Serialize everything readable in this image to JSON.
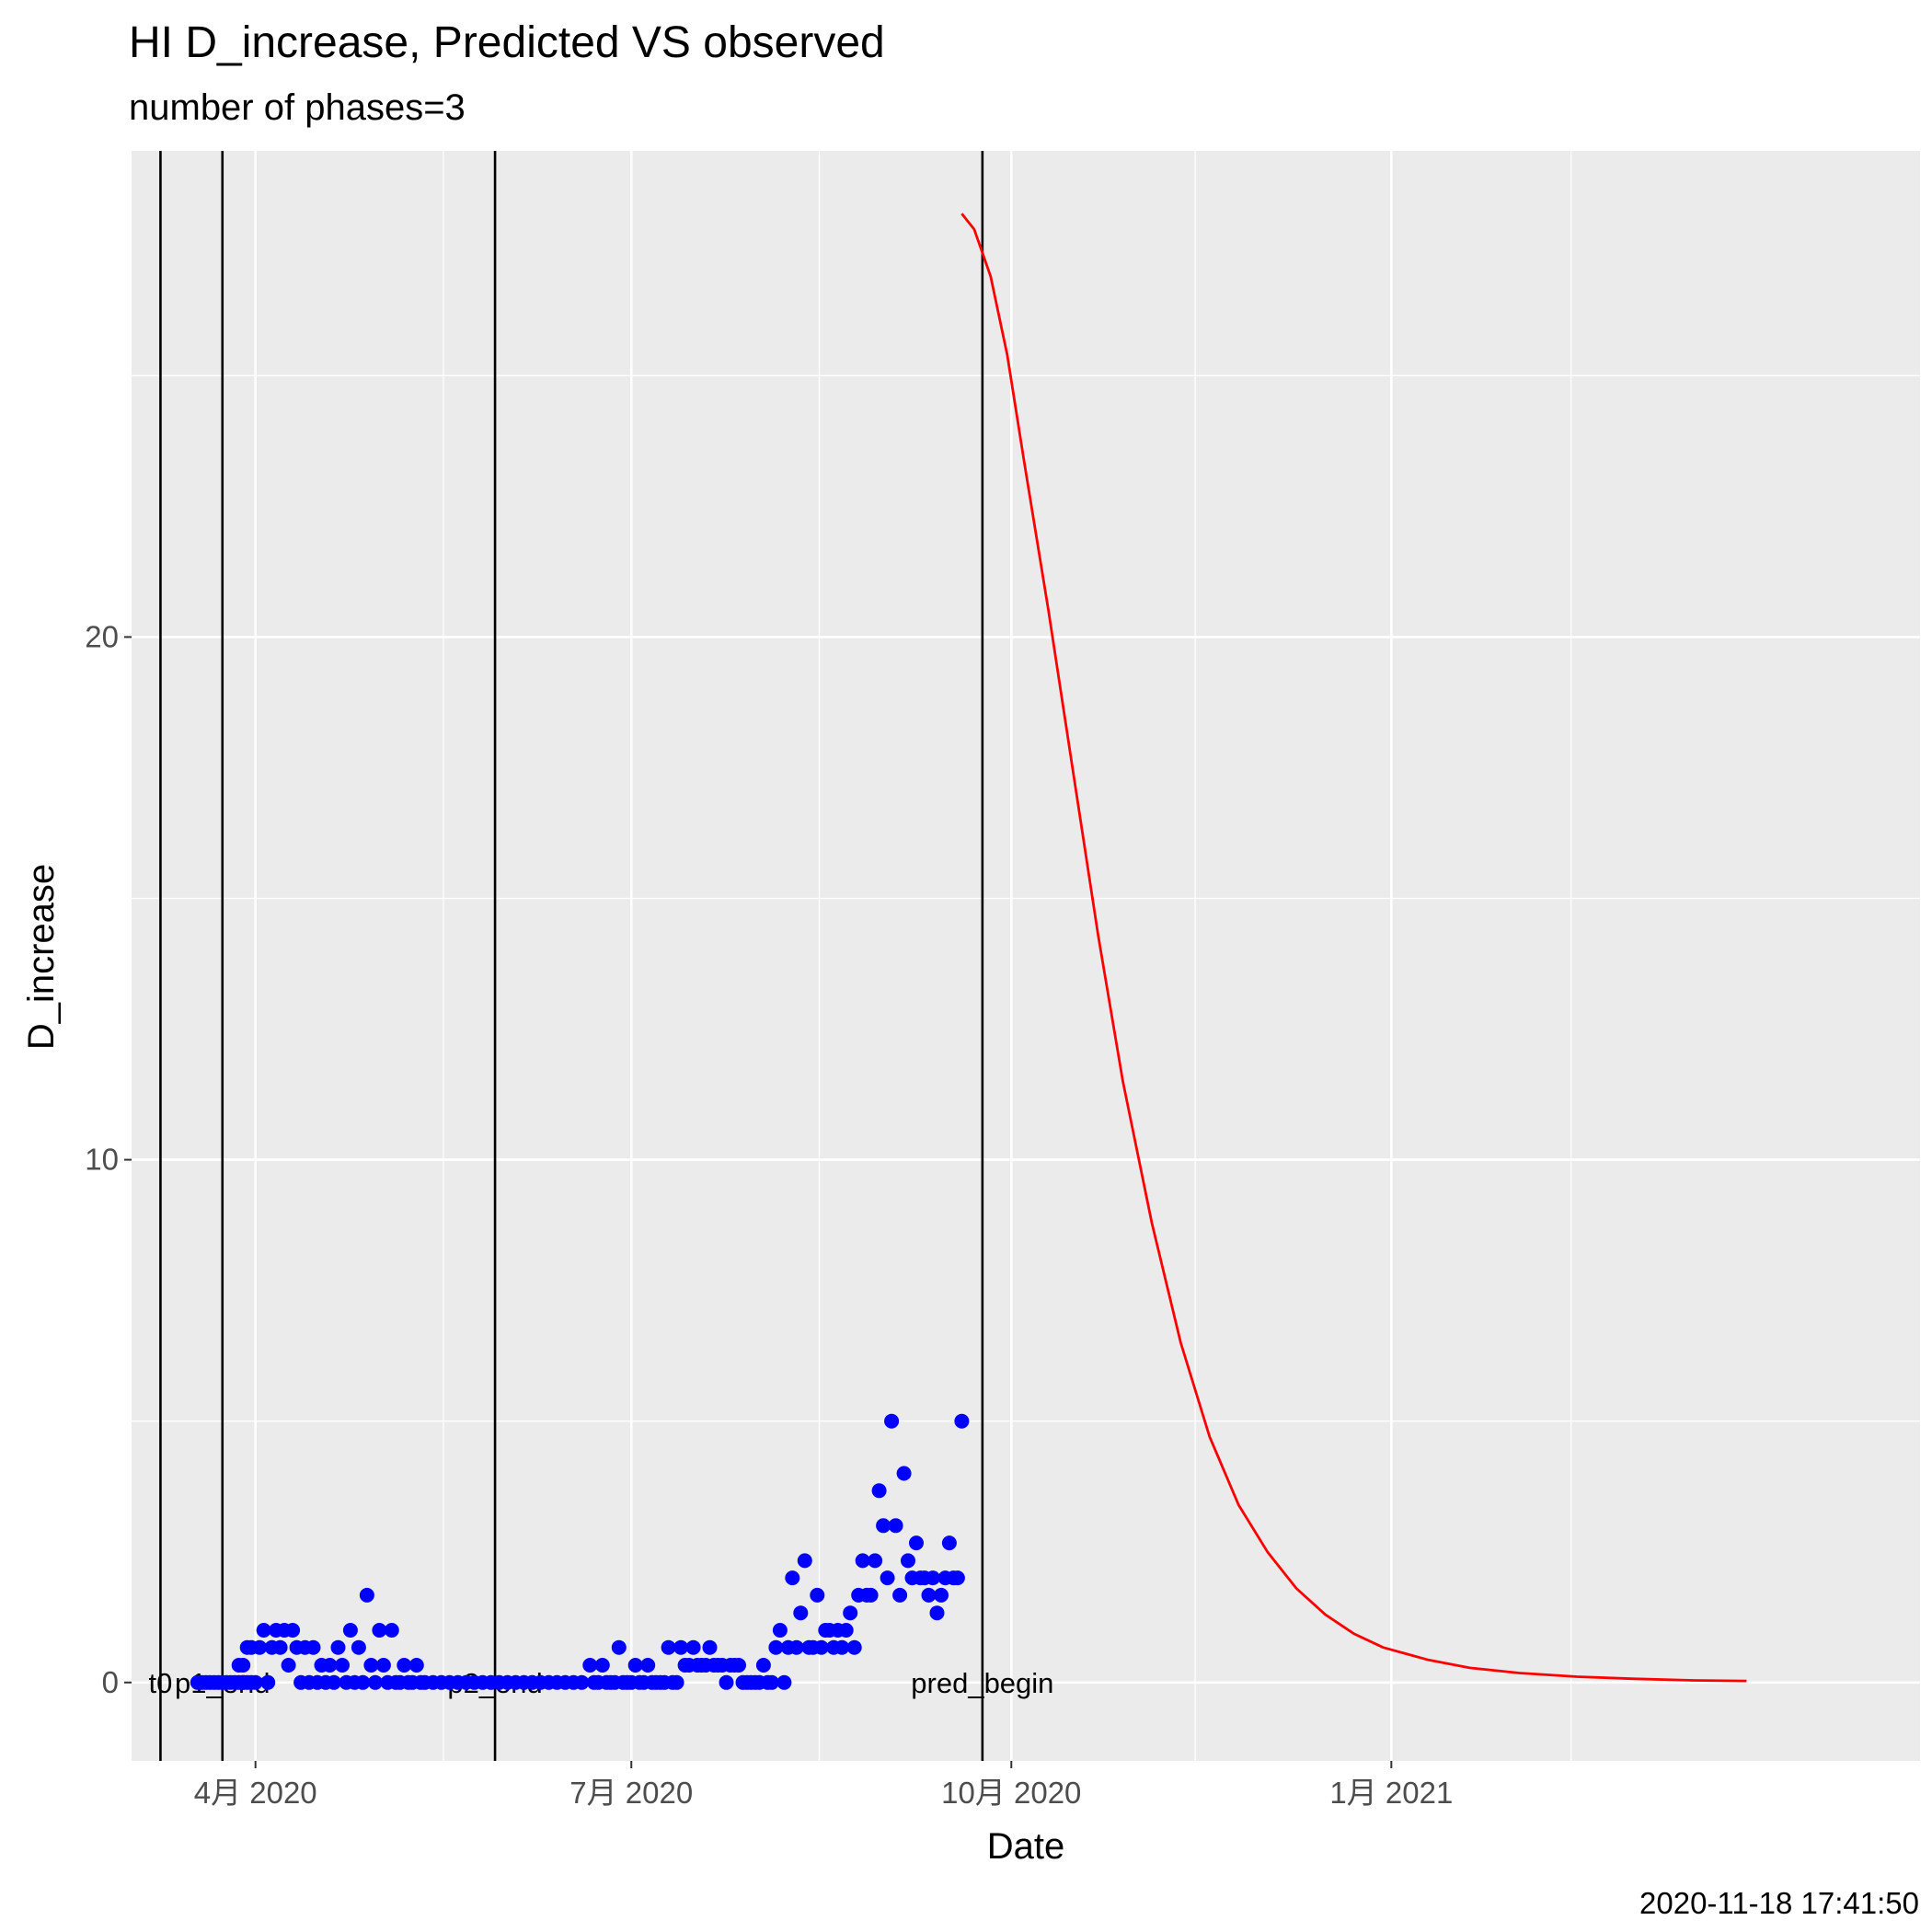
{
  "chart_data": {
    "type": "line",
    "title": "HI D_increase, Predicted VS observed",
    "subtitle": "number of phases=3",
    "xlabel": "Date",
    "ylabel": "D_increase",
    "caption": "2020-11-18 17:41:50",
    "xlim": [
      "2020-03-02",
      "2021-05-09"
    ],
    "ylim": [
      -1.5,
      29.3
    ],
    "x_ticks": [
      {
        "date": "2020-04-01",
        "label": "4月 2020"
      },
      {
        "date": "2020-07-01",
        "label": "7月 2020"
      },
      {
        "date": "2020-10-01",
        "label": "10月 2020"
      },
      {
        "date": "2021-01-01",
        "label": "1月 2021"
      }
    ],
    "y_ticks": [
      0,
      10,
      20
    ],
    "grid": true,
    "vertical_lines": [
      {
        "date": "2020-03-09",
        "label": "t0"
      },
      {
        "date": "2020-03-24",
        "label": "p1_end"
      },
      {
        "date": "2020-05-29",
        "label": "p2_end"
      },
      {
        "date": "2020-09-24",
        "label": "pred_begin"
      }
    ],
    "colors": {
      "observed": "#0000ff",
      "predicted": "#ff0000",
      "vlines": "#000000",
      "panel": "#ebebeb",
      "grid": "#ffffff"
    },
    "series": [
      {
        "type": "scatter",
        "color": "#0000ff",
        "points": [
          [
            "2020-03-18",
            0
          ],
          [
            "2020-03-19",
            0
          ],
          [
            "2020-03-20",
            0
          ],
          [
            "2020-03-21",
            0
          ],
          [
            "2020-03-22",
            0
          ],
          [
            "2020-03-23",
            0
          ],
          [
            "2020-03-24",
            0
          ],
          [
            "2020-03-25",
            0
          ],
          [
            "2020-03-26",
            0
          ],
          [
            "2020-03-27",
            0
          ],
          [
            "2020-03-28",
            0
          ],
          [
            "2020-03-29",
            0
          ],
          [
            "2020-03-30",
            0
          ],
          [
            "2020-03-31",
            0
          ],
          [
            "2020-03-28",
            0.33
          ],
          [
            "2020-03-29",
            0.33
          ],
          [
            "2020-03-29",
            0
          ],
          [
            "2020-03-30",
            0.67
          ],
          [
            "2020-03-31",
            0.67
          ],
          [
            "2020-04-01",
            0
          ],
          [
            "2020-04-02",
            0.67
          ],
          [
            "2020-04-03",
            1
          ],
          [
            "2020-04-04",
            0
          ],
          [
            "2020-04-05",
            0.67
          ],
          [
            "2020-04-06",
            1
          ],
          [
            "2020-04-07",
            0.67
          ],
          [
            "2020-04-08",
            1
          ],
          [
            "2020-04-09",
            0.33
          ],
          [
            "2020-04-10",
            1
          ],
          [
            "2020-04-11",
            0.67
          ],
          [
            "2020-04-12",
            0
          ],
          [
            "2020-04-13",
            0.67
          ],
          [
            "2020-04-14",
            0
          ],
          [
            "2020-04-15",
            0.67
          ],
          [
            "2020-04-16",
            0
          ],
          [
            "2020-04-17",
            0.33
          ],
          [
            "2020-04-18",
            0
          ],
          [
            "2020-04-19",
            0.33
          ],
          [
            "2020-04-20",
            0
          ],
          [
            "2020-04-21",
            0.67
          ],
          [
            "2020-04-22",
            0.33
          ],
          [
            "2020-04-23",
            0
          ],
          [
            "2020-04-24",
            1
          ],
          [
            "2020-04-25",
            0
          ],
          [
            "2020-04-26",
            0.67
          ],
          [
            "2020-04-27",
            0
          ],
          [
            "2020-04-28",
            1.67
          ],
          [
            "2020-04-29",
            0.33
          ],
          [
            "2020-04-30",
            0
          ],
          [
            "2020-05-01",
            1
          ],
          [
            "2020-05-02",
            0.33
          ],
          [
            "2020-05-03",
            0
          ],
          [
            "2020-05-04",
            1
          ],
          [
            "2020-05-05",
            0
          ],
          [
            "2020-05-06",
            0
          ],
          [
            "2020-05-07",
            0.33
          ],
          [
            "2020-05-08",
            0
          ],
          [
            "2020-05-09",
            0
          ],
          [
            "2020-05-10",
            0.33
          ],
          [
            "2020-05-11",
            0
          ],
          [
            "2020-05-12",
            0
          ],
          [
            "2020-05-14",
            0
          ],
          [
            "2020-05-16",
            0
          ],
          [
            "2020-05-18",
            0
          ],
          [
            "2020-05-20",
            0
          ],
          [
            "2020-05-22",
            0
          ],
          [
            "2020-05-24",
            0
          ],
          [
            "2020-05-26",
            0
          ],
          [
            "2020-05-28",
            0
          ],
          [
            "2020-05-30",
            0
          ],
          [
            "2020-06-01",
            0
          ],
          [
            "2020-06-03",
            0
          ],
          [
            "2020-06-05",
            0
          ],
          [
            "2020-06-07",
            0
          ],
          [
            "2020-06-09",
            0
          ],
          [
            "2020-06-11",
            0
          ],
          [
            "2020-06-13",
            0
          ],
          [
            "2020-06-15",
            0
          ],
          [
            "2020-06-17",
            0
          ],
          [
            "2020-06-19",
            0
          ],
          [
            "2020-06-21",
            0.33
          ],
          [
            "2020-06-22",
            0
          ],
          [
            "2020-06-23",
            0
          ],
          [
            "2020-06-24",
            0.33
          ],
          [
            "2020-06-25",
            0
          ],
          [
            "2020-06-26",
            0
          ],
          [
            "2020-06-27",
            0
          ],
          [
            "2020-06-28",
            0.67
          ],
          [
            "2020-06-29",
            0
          ],
          [
            "2020-06-30",
            0
          ],
          [
            "2020-07-01",
            0
          ],
          [
            "2020-07-02",
            0.33
          ],
          [
            "2020-07-03",
            0
          ],
          [
            "2020-07-04",
            0
          ],
          [
            "2020-07-05",
            0.33
          ],
          [
            "2020-07-06",
            0
          ],
          [
            "2020-07-07",
            0
          ],
          [
            "2020-07-08",
            0
          ],
          [
            "2020-07-09",
            0
          ],
          [
            "2020-07-10",
            0.67
          ],
          [
            "2020-07-11",
            0
          ],
          [
            "2020-07-12",
            0
          ],
          [
            "2020-07-13",
            0.67
          ],
          [
            "2020-07-14",
            0.33
          ],
          [
            "2020-07-15",
            0.33
          ],
          [
            "2020-07-16",
            0.67
          ],
          [
            "2020-07-17",
            0.33
          ],
          [
            "2020-07-18",
            0.33
          ],
          [
            "2020-07-19",
            0.33
          ],
          [
            "2020-07-20",
            0.67
          ],
          [
            "2020-07-21",
            0.33
          ],
          [
            "2020-07-22",
            0.33
          ],
          [
            "2020-07-23",
            0.33
          ],
          [
            "2020-07-24",
            0
          ],
          [
            "2020-07-25",
            0.33
          ],
          [
            "2020-07-26",
            0.33
          ],
          [
            "2020-07-27",
            0.33
          ],
          [
            "2020-07-28",
            0
          ],
          [
            "2020-07-29",
            0
          ],
          [
            "2020-07-30",
            0
          ],
          [
            "2020-07-31",
            0
          ],
          [
            "2020-08-01",
            0
          ],
          [
            "2020-08-02",
            0.33
          ],
          [
            "2020-08-03",
            0
          ],
          [
            "2020-08-04",
            0
          ],
          [
            "2020-08-05",
            0.67
          ],
          [
            "2020-08-06",
            1
          ],
          [
            "2020-08-07",
            0
          ],
          [
            "2020-08-08",
            0.67
          ],
          [
            "2020-08-09",
            2
          ],
          [
            "2020-08-10",
            0.67
          ],
          [
            "2020-08-11",
            1.33
          ],
          [
            "2020-08-12",
            2.33
          ],
          [
            "2020-08-13",
            0.67
          ],
          [
            "2020-08-14",
            0.67
          ],
          [
            "2020-08-15",
            1.67
          ],
          [
            "2020-08-16",
            0.67
          ],
          [
            "2020-08-17",
            1
          ],
          [
            "2020-08-18",
            1
          ],
          [
            "2020-08-19",
            0.67
          ],
          [
            "2020-08-20",
            1
          ],
          [
            "2020-08-21",
            0.67
          ],
          [
            "2020-08-22",
            1
          ],
          [
            "2020-08-23",
            1.33
          ],
          [
            "2020-08-24",
            0.67
          ],
          [
            "2020-08-25",
            1.67
          ],
          [
            "2020-08-26",
            2.33
          ],
          [
            "2020-08-27",
            1.67
          ],
          [
            "2020-08-28",
            1.67
          ],
          [
            "2020-08-29",
            2.33
          ],
          [
            "2020-08-30",
            3.67
          ],
          [
            "2020-08-31",
            3
          ],
          [
            "2020-09-01",
            2
          ],
          [
            "2020-09-02",
            5
          ],
          [
            "2020-09-03",
            3
          ],
          [
            "2020-09-04",
            1.67
          ],
          [
            "2020-09-05",
            4
          ],
          [
            "2020-09-06",
            2.33
          ],
          [
            "2020-09-07",
            2
          ],
          [
            "2020-09-08",
            2.67
          ],
          [
            "2020-09-09",
            2
          ],
          [
            "2020-09-10",
            2
          ],
          [
            "2020-09-11",
            1.67
          ],
          [
            "2020-09-12",
            2
          ],
          [
            "2020-09-13",
            1.33
          ],
          [
            "2020-09-14",
            1.67
          ],
          [
            "2020-09-15",
            2
          ],
          [
            "2020-09-16",
            2.67
          ],
          [
            "2020-09-17",
            2
          ],
          [
            "2020-09-18",
            2
          ],
          [
            "2020-09-19",
            5
          ]
        ]
      },
      {
        "type": "line",
        "color": "#ff0000",
        "points": [
          [
            "2020-09-19",
            28.1
          ],
          [
            "2020-09-22",
            27.8
          ],
          [
            "2020-09-26",
            26.9
          ],
          [
            "2020-09-30",
            25.4
          ],
          [
            "2020-10-04",
            23.4
          ],
          [
            "2020-10-10",
            20.5
          ],
          [
            "2020-10-16",
            17.4
          ],
          [
            "2020-10-22",
            14.3
          ],
          [
            "2020-10-28",
            11.5
          ],
          [
            "2020-11-04",
            8.8
          ],
          [
            "2020-11-11",
            6.5
          ],
          [
            "2020-11-18",
            4.7
          ],
          [
            "2020-11-25",
            3.4
          ],
          [
            "2020-12-02",
            2.5
          ],
          [
            "2020-12-09",
            1.8
          ],
          [
            "2020-12-16",
            1.3
          ],
          [
            "2020-12-23",
            0.93
          ],
          [
            "2020-12-30",
            0.67
          ],
          [
            "2021-01-10",
            0.43
          ],
          [
            "2021-01-20",
            0.28
          ],
          [
            "2021-02-01",
            0.18
          ],
          [
            "2021-02-15",
            0.11
          ],
          [
            "2021-03-01",
            0.07
          ],
          [
            "2021-03-15",
            0.04
          ],
          [
            "2021-03-28",
            0.03
          ]
        ]
      }
    ]
  }
}
